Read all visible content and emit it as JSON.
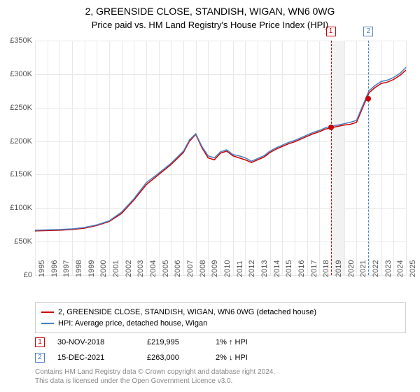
{
  "title": "2, GREENSIDE CLOSE, STANDISH, WIGAN, WN6 0WG",
  "subtitle": "Price paid vs. HM Land Registry's House Price Index (HPI)",
  "chart": {
    "type": "line",
    "background_color": "#ffffff",
    "grid_color": "#e8e8e8",
    "label_color": "#555555",
    "label_fontsize": 11,
    "xlim": [
      1995,
      2025
    ],
    "ylim": [
      0,
      350000
    ],
    "x_ticks": [
      1995,
      1996,
      1997,
      1998,
      1999,
      2000,
      2001,
      2002,
      2003,
      2004,
      2005,
      2006,
      2007,
      2008,
      2009,
      2010,
      2011,
      2012,
      2013,
      2014,
      2015,
      2016,
      2017,
      2018,
      2019,
      2020,
      2021,
      2022,
      2023,
      2024,
      2025
    ],
    "y_ticks": [
      0,
      50000,
      100000,
      150000,
      200000,
      250000,
      300000,
      350000
    ],
    "y_tick_labels": [
      "£0",
      "£50K",
      "£100K",
      "£150K",
      "£200K",
      "£250K",
      "£300K",
      "£350K"
    ],
    "series": [
      {
        "label": "2, GREENSIDE CLOSE, STANDISH, WIGAN, WN6 0WG (detached house)",
        "color": "#cc0000",
        "line_width": 1.5,
        "x": [
          1995,
          1996,
          1997,
          1998,
          1999,
          2000,
          2001,
          2002,
          2003,
          2004,
          2005,
          2006,
          2007,
          2007.5,
          2008,
          2008.5,
          2009,
          2009.5,
          2010,
          2010.5,
          2011,
          2011.5,
          2012,
          2012.5,
          2013,
          2013.5,
          2014,
          2014.5,
          2015,
          2015.5,
          2016,
          2016.5,
          2017,
          2017.5,
          2018,
          2018.5,
          2019,
          2019.5,
          2020,
          2020.5,
          2021,
          2021.5,
          2022,
          2022.5,
          2023,
          2023.5,
          2024,
          2024.5,
          2025
        ],
        "y": [
          66000,
          66500,
          67000,
          68000,
          70000,
          74000,
          80000,
          92000,
          112000,
          135000,
          150000,
          165000,
          183000,
          200000,
          210000,
          190000,
          175000,
          172000,
          182000,
          185000,
          178000,
          175000,
          172000,
          168000,
          172000,
          176000,
          183000,
          188000,
          192000,
          196000,
          199000,
          203000,
          207000,
          211000,
          214000,
          218000,
          220000,
          222000,
          224000,
          225000,
          228000,
          250000,
          272000,
          280000,
          286000,
          288000,
          292000,
          298000,
          306000
        ]
      },
      {
        "label": "HPI: Average price, detached house, Wigan",
        "color": "#4a7fc4",
        "line_width": 1.5,
        "x": [
          1995,
          1996,
          1997,
          1998,
          1999,
          2000,
          2001,
          2002,
          2003,
          2004,
          2005,
          2006,
          2007,
          2007.5,
          2008,
          2008.5,
          2009,
          2009.5,
          2010,
          2010.5,
          2011,
          2011.5,
          2012,
          2012.5,
          2013,
          2013.5,
          2014,
          2014.5,
          2015,
          2015.5,
          2016,
          2016.5,
          2017,
          2017.5,
          2018,
          2018.5,
          2019,
          2019.5,
          2020,
          2020.5,
          2021,
          2021.5,
          2022,
          2022.5,
          2023,
          2023.5,
          2024,
          2024.5,
          2025
        ],
        "y": [
          67000,
          67500,
          68000,
          69000,
          71000,
          75000,
          81000,
          94000,
          114000,
          138000,
          152000,
          167000,
          185000,
          202000,
          211000,
          192000,
          178000,
          175000,
          184000,
          187000,
          180000,
          178000,
          175000,
          170000,
          174000,
          178000,
          185000,
          190000,
          194000,
          198000,
          201000,
          205000,
          209000,
          213000,
          216000,
          220000,
          222000,
          224000,
          226000,
          228000,
          231000,
          253000,
          275000,
          283000,
          289000,
          291000,
          295000,
          301000,
          310000
        ]
      }
    ],
    "markers": [
      {
        "n": "1",
        "x": 2018.92,
        "color": "#cc0000",
        "shade_to": 2020.0,
        "shade_color": "#f2f2f2"
      },
      {
        "n": "2",
        "x": 2021.96,
        "color": "#4a7fc4",
        "shade_to": null,
        "shade_color": null
      }
    ],
    "sale_points": [
      {
        "x": 2018.92,
        "y": 219995,
        "color": "#cc0000"
      },
      {
        "x": 2021.96,
        "y": 263000,
        "color": "#cc0000"
      }
    ]
  },
  "legend": {
    "border_color": "#cccccc",
    "fontsize": 11
  },
  "events": [
    {
      "n": "1",
      "color": "#cc0000",
      "date": "30-NOV-2018",
      "price": "£219,995",
      "delta": "1% ↑ HPI"
    },
    {
      "n": "2",
      "color": "#4a7fc4",
      "date": "15-DEC-2021",
      "price": "£263,000",
      "delta": "2% ↓ HPI"
    }
  ],
  "footer": {
    "line1": "Contains HM Land Registry data © Crown copyright and database right 2024.",
    "line2": "This data is licensed under the Open Government Licence v3.0.",
    "color": "#888888",
    "fontsize": 10
  }
}
